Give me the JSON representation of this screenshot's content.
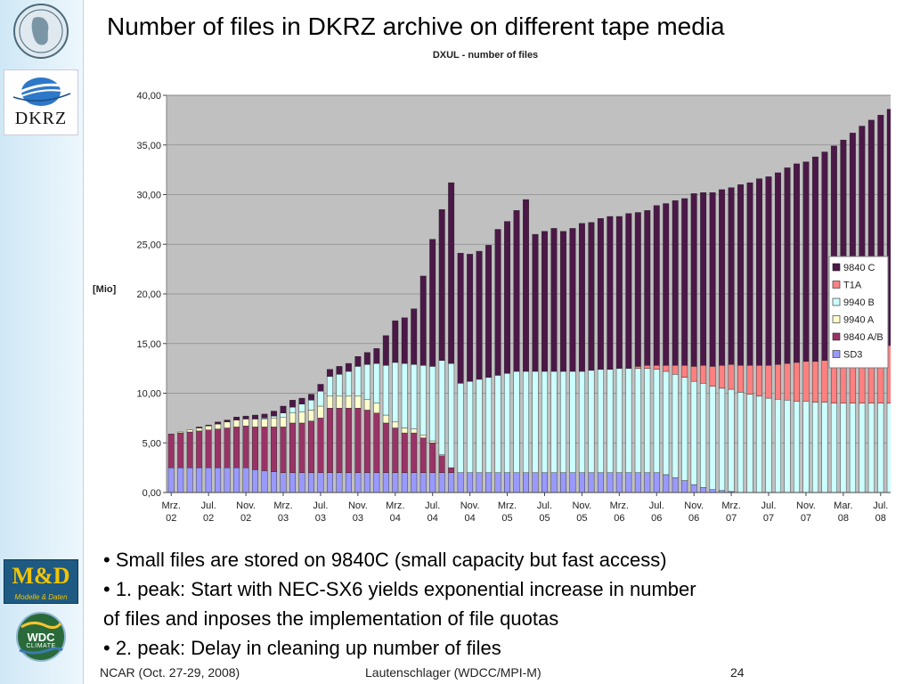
{
  "slide": {
    "title": "Number of files in DKRZ archive on different tape media",
    "logos": {
      "dkrz": "DKRZ",
      "md": "M&D",
      "md_sub": "Modelle & Daten",
      "wdc": "WDC",
      "wdc_sub": "CLIMATE"
    },
    "bullets": [
      "• Small files are stored on 9840C (small capacity but fast access)",
      "• 1. peak: Start with NEC-SX6 yields exponential increase in number",
      "of files and inposes the implementation of file quotas",
      "• 2. peak: Delay in cleaning up number of files"
    ],
    "footer": {
      "left": "NCAR (Oct. 27-29, 2008)",
      "center": "Lautenschlager (WDCC/MPI-M)",
      "page": "24"
    }
  },
  "chart_data": {
    "type": "bar",
    "stacked": true,
    "title": "DXUL - number of files",
    "ylabel": "[Mio]",
    "xlabel": "",
    "ylim": [
      0,
      40
    ],
    "yticks": [
      "0,00",
      "5,00",
      "10,00",
      "15,00",
      "20,00",
      "25,00",
      "30,00",
      "35,00",
      "40,00"
    ],
    "grid": true,
    "plot_background": "#c0c0c0",
    "legend_position": "right",
    "xtick_labels": [
      [
        "Mrz.",
        "02"
      ],
      [
        "Jul.",
        "02"
      ],
      [
        "Nov.",
        "02"
      ],
      [
        "Mrz.",
        "03"
      ],
      [
        "Jul.",
        "03"
      ],
      [
        "Nov.",
        "03"
      ],
      [
        "Mrz.",
        "04"
      ],
      [
        "Jul.",
        "04"
      ],
      [
        "Nov.",
        "04"
      ],
      [
        "Mrz.",
        "05"
      ],
      [
        "Jul.",
        "05"
      ],
      [
        "Nov.",
        "05"
      ],
      [
        "Mrz.",
        "06"
      ],
      [
        "Jul.",
        "06"
      ],
      [
        "Nov.",
        "06"
      ],
      [
        "Mrz.",
        "07"
      ],
      [
        "Jul.",
        "07"
      ],
      [
        "Nov.",
        "07"
      ],
      [
        "Mar.",
        "08"
      ],
      [
        "Jul.",
        "08"
      ]
    ],
    "categories": [
      "Mrz 02",
      "Apr 02",
      "Mai 02",
      "Jun 02",
      "Jul 02",
      "Aug 02",
      "Sep 02",
      "Okt 02",
      "Nov 02",
      "Dez 02",
      "Jan 03",
      "Feb 03",
      "Mrz 03",
      "Apr 03",
      "Mai 03",
      "Jun 03",
      "Jul 03",
      "Aug 03",
      "Sep 03",
      "Okt 03",
      "Nov 03",
      "Dez 03",
      "Jan 04",
      "Feb 04",
      "Mrz 04",
      "Apr 04",
      "Mai 04",
      "Jun 04",
      "Jul 04",
      "Aug 04",
      "Sep 04",
      "Okt 04",
      "Nov 04",
      "Dez 04",
      "Jan 05",
      "Feb 05",
      "Mrz 05",
      "Apr 05",
      "Mai 05",
      "Jun 05",
      "Jul 05",
      "Aug 05",
      "Sep 05",
      "Okt 05",
      "Nov 05",
      "Dez 05",
      "Jan 06",
      "Feb 06",
      "Mrz 06",
      "Apr 06",
      "Mai 06",
      "Jun 06",
      "Jul 06",
      "Aug 06",
      "Sep 06",
      "Okt 06",
      "Nov 06",
      "Dez 06",
      "Jan 07",
      "Feb 07",
      "Mrz 07",
      "Apr 07",
      "Mai 07",
      "Jun 07",
      "Jul 07",
      "Aug 07",
      "Sep 07",
      "Okt 07",
      "Nov 07",
      "Dez 07",
      "Jan 08",
      "Feb 08",
      "Mar 08",
      "Apr 08",
      "Mai 08",
      "Jun 08",
      "Jul 08",
      "Aug 08",
      "Sep 08"
    ],
    "series": [
      {
        "name": "SD3",
        "color": "#9999ff",
        "values": [
          2.5,
          2.5,
          2.5,
          2.5,
          2.5,
          2.5,
          2.5,
          2.5,
          2.5,
          2.3,
          2.2,
          2.1,
          2.0,
          2.0,
          2.0,
          2.0,
          2.0,
          2.0,
          2.0,
          2.0,
          2.0,
          2.0,
          2.0,
          2.0,
          2.0,
          2.0,
          2.0,
          2.0,
          2.0,
          2.0,
          2.0,
          2.0,
          2.0,
          2.0,
          2.0,
          2.0,
          2.0,
          2.0,
          2.0,
          2.0,
          2.0,
          2.0,
          2.0,
          2.0,
          2.0,
          2.0,
          2.0,
          2.0,
          2.0,
          2.0,
          2.0,
          2.0,
          2.0,
          1.8,
          1.5,
          1.2,
          0.8,
          0.5,
          0.3,
          0.2,
          0.1,
          0,
          0,
          0,
          0,
          0,
          0,
          0,
          0,
          0,
          0,
          0,
          0,
          0,
          0,
          0,
          0,
          0,
          0
        ]
      },
      {
        "name": "9840 A/B",
        "color": "#993366",
        "values": [
          3.4,
          3.5,
          3.6,
          3.7,
          3.8,
          3.9,
          4.0,
          4.1,
          4.2,
          4.3,
          4.4,
          4.5,
          4.6,
          5.0,
          5.0,
          5.2,
          5.5,
          6.5,
          6.5,
          6.5,
          6.5,
          6.3,
          6.0,
          5.0,
          4.5,
          4.0,
          4.0,
          3.5,
          3.0,
          1.7,
          0.5,
          0,
          0,
          0,
          0,
          0,
          0,
          0,
          0,
          0,
          0,
          0,
          0,
          0,
          0,
          0,
          0,
          0,
          0,
          0,
          0,
          0,
          0,
          0,
          0,
          0,
          0,
          0,
          0,
          0,
          0,
          0,
          0,
          0,
          0,
          0,
          0,
          0,
          0,
          0,
          0,
          0,
          0,
          0,
          0,
          0,
          0,
          0,
          0
        ]
      },
      {
        "name": "9940 A",
        "color": "#ffffcc",
        "values": [
          0,
          0.1,
          0.2,
          0.3,
          0.4,
          0.5,
          0.6,
          0.7,
          0.7,
          0.8,
          0.8,
          0.9,
          1.0,
          1.0,
          1.1,
          1.1,
          1.2,
          1.2,
          1.2,
          1.2,
          1.2,
          1.1,
          1.0,
          0.8,
          0.6,
          0.5,
          0.4,
          0.3,
          0.2,
          0.1,
          0,
          0,
          0,
          0,
          0,
          0,
          0,
          0,
          0,
          0,
          0,
          0,
          0,
          0,
          0,
          0,
          0,
          0,
          0,
          0,
          0,
          0,
          0,
          0,
          0,
          0,
          0,
          0,
          0,
          0,
          0,
          0,
          0,
          0,
          0,
          0,
          0,
          0,
          0,
          0,
          0,
          0,
          0,
          0,
          0,
          0,
          0,
          0,
          0
        ]
      },
      {
        "name": "9940 B",
        "color": "#ccffff",
        "values": [
          0,
          0,
          0,
          0,
          0,
          0,
          0,
          0,
          0,
          0,
          0.1,
          0.2,
          0.4,
          0.6,
          0.8,
          1.0,
          1.5,
          2.0,
          2.2,
          2.5,
          3.0,
          3.5,
          4.0,
          5.0,
          6.0,
          6.5,
          6.5,
          7.0,
          7.5,
          9.5,
          10.5,
          9.0,
          9.2,
          9.4,
          9.6,
          9.8,
          10.0,
          10.2,
          10.2,
          10.2,
          10.2,
          10.2,
          10.2,
          10.2,
          10.2,
          10.3,
          10.4,
          10.4,
          10.5,
          10.5,
          10.5,
          10.5,
          10.4,
          10.4,
          10.4,
          10.4,
          10.4,
          10.5,
          10.4,
          10.3,
          10.3,
          10.1,
          9.9,
          9.7,
          9.5,
          9.4,
          9.3,
          9.2,
          9.2,
          9.1,
          9.1,
          9.0,
          9.0,
          9.0,
          9.0,
          9.0,
          9.0,
          9.0,
          8.9
        ]
      },
      {
        "name": "T1A",
        "color": "#ff8080",
        "values": [
          0,
          0,
          0,
          0,
          0,
          0,
          0,
          0,
          0,
          0,
          0,
          0,
          0,
          0,
          0,
          0,
          0,
          0,
          0,
          0,
          0,
          0,
          0,
          0,
          0,
          0,
          0,
          0,
          0,
          0,
          0,
          0,
          0,
          0,
          0,
          0,
          0,
          0,
          0,
          0,
          0,
          0,
          0,
          0,
          0,
          0,
          0,
          0,
          0,
          0,
          0.2,
          0.3,
          0.4,
          0.6,
          0.9,
          1.2,
          1.5,
          1.8,
          2.0,
          2.3,
          2.5,
          2.7,
          2.9,
          3.1,
          3.3,
          3.5,
          3.7,
          3.9,
          4.0,
          4.1,
          4.2,
          4.5,
          4.7,
          4.9,
          5.1,
          5.3,
          5.6,
          5.8,
          6.0
        ]
      },
      {
        "name": "9840 C",
        "color": "#4b1848",
        "values": [
          0,
          0,
          0,
          0.1,
          0.1,
          0.2,
          0.2,
          0.3,
          0.3,
          0.4,
          0.4,
          0.5,
          0.7,
          0.7,
          0.6,
          0.6,
          0.7,
          0.7,
          0.8,
          0.8,
          1.0,
          1.2,
          1.5,
          3.0,
          4.2,
          4.6,
          5.6,
          9.0,
          12.8,
          15.2,
          18.2,
          13.1,
          12.8,
          12.9,
          13.3,
          14.7,
          15.3,
          16.2,
          17.3,
          13.8,
          14.1,
          14.4,
          14.1,
          14.4,
          14.9,
          14.9,
          15.2,
          15.4,
          15.3,
          15.6,
          15.5,
          15.6,
          16.1,
          16.3,
          16.6,
          16.8,
          17.4,
          17.4,
          17.5,
          17.7,
          17.8,
          18.2,
          18.4,
          18.8,
          19.0,
          19.3,
          19.7,
          20.0,
          20.1,
          20.6,
          21.0,
          21.4,
          21.8,
          22.3,
          22.8,
          23.2,
          23.4,
          23.8,
          23.9
        ]
      }
    ],
    "legend": [
      "9840 C",
      "T1A",
      "9940 B",
      "9940 A",
      "9840 A/B",
      "SD3"
    ]
  }
}
